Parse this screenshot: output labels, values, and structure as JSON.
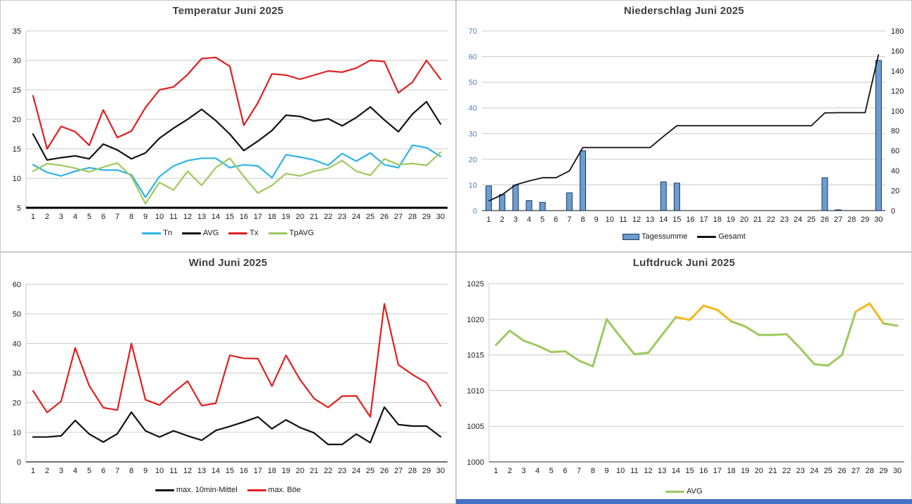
{
  "page": {
    "bottom_strip_color": "#4472C4",
    "gridline_color": "#c9c9c9",
    "tick_color": "#1a1a1a"
  },
  "chart_data": [
    {
      "id": "temperatur",
      "type": "line",
      "title": "Temperatur Juni 2025",
      "xlabel": "",
      "ylabel": "",
      "categories": [
        1,
        2,
        3,
        4,
        5,
        6,
        7,
        8,
        9,
        10,
        11,
        12,
        13,
        14,
        15,
        16,
        17,
        18,
        19,
        20,
        21,
        22,
        23,
        24,
        25,
        26,
        27,
        28,
        29,
        30
      ],
      "y_axis": {
        "min": 5,
        "max": 35,
        "step": 5
      },
      "x_axis_line": {
        "color": "#000000",
        "width": 3
      },
      "legend_position": "bottom",
      "series": [
        {
          "name": "Tn",
          "color": "#2eb3e8",
          "values": [
            12.3,
            11.0,
            10.4,
            11.2,
            11.8,
            11.4,
            11.4,
            10.6,
            6.8,
            10.3,
            12.1,
            13.0,
            13.4,
            13.4,
            11.8,
            12.3,
            12.1,
            10.1,
            14.0,
            13.6,
            13.1,
            12.2,
            14.2,
            12.9,
            14.3,
            12.3,
            11.8,
            15.6,
            15.2,
            13.7
          ]
        },
        {
          "name": "AVG",
          "color": "#121212",
          "values": [
            17.5,
            13.1,
            13.5,
            13.8,
            13.3,
            15.8,
            14.8,
            13.3,
            14.3,
            16.8,
            18.5,
            20.0,
            21.7,
            19.8,
            17.5,
            14.7,
            16.3,
            18.1,
            20.7,
            20.5,
            19.7,
            20.1,
            18.9,
            20.3,
            22.1,
            19.9,
            17.9,
            20.9,
            23.0,
            19.2
          ]
        },
        {
          "name": "Tx",
          "color": "#e0201f",
          "values": [
            24.0,
            15.0,
            18.8,
            17.9,
            15.6,
            21.6,
            16.9,
            18.0,
            22.0,
            25.0,
            25.5,
            27.6,
            30.3,
            30.5,
            29.0,
            19.0,
            22.8,
            27.7,
            27.5,
            26.8,
            27.5,
            28.2,
            28.0,
            28.7,
            30.0,
            29.8,
            24.5,
            26.3,
            30.0,
            26.8
          ]
        },
        {
          "name": "TpAVG",
          "color": "#9dc95e",
          "values": [
            11.2,
            12.5,
            12.2,
            11.7,
            11.1,
            11.9,
            12.6,
            10.3,
            5.7,
            9.3,
            8.0,
            11.2,
            8.8,
            11.8,
            13.4,
            10.3,
            7.5,
            8.8,
            10.8,
            10.4,
            11.2,
            11.7,
            13.0,
            11.2,
            10.5,
            13.3,
            12.3,
            12.5,
            12.2,
            14.4
          ]
        }
      ]
    },
    {
      "id": "niederschlag",
      "type": "bar",
      "title": "Niederschlag Juni 2025",
      "categories": [
        1,
        2,
        3,
        4,
        5,
        6,
        7,
        8,
        9,
        10,
        11,
        12,
        13,
        14,
        15,
        16,
        17,
        18,
        19,
        20,
        21,
        22,
        23,
        24,
        25,
        26,
        27,
        28,
        29,
        30
      ],
      "left_axis": {
        "min": 0,
        "max": 70,
        "step": 10,
        "label_color": "#4f81bd"
      },
      "right_axis": {
        "min": 0,
        "max": 180,
        "step": 20,
        "label_color": "#1a1a1a"
      },
      "legend_position": "bottom",
      "bar_series": {
        "name": "Tagessumme",
        "fill": "#6d9cd1",
        "stroke": "#17375e",
        "axis": "left",
        "values": [
          9.6,
          6.3,
          9.9,
          3.9,
          3.2,
          0,
          6.9,
          23.3,
          0,
          0,
          0,
          0,
          0,
          11.2,
          10.7,
          0,
          0,
          0,
          0,
          0,
          0,
          0,
          0,
          0,
          0,
          12.8,
          0.3,
          0,
          0,
          58.5
        ]
      },
      "line_series": {
        "name": "Gesamt",
        "color": "#121212",
        "axis": "right",
        "values": [
          9.6,
          15.9,
          25.8,
          29.7,
          32.9,
          32.9,
          39.8,
          63.1,
          63.1,
          63.1,
          63.1,
          63.1,
          63.1,
          74.3,
          85.0,
          85.0,
          85.0,
          85.0,
          85.0,
          85.0,
          85.0,
          85.0,
          85.0,
          85.0,
          85.0,
          97.8,
          98.1,
          98.1,
          98.1,
          156.6
        ]
      }
    },
    {
      "id": "wind",
      "type": "line",
      "title": "Wind Juni 2025",
      "categories": [
        1,
        2,
        3,
        4,
        5,
        6,
        7,
        8,
        9,
        10,
        11,
        12,
        13,
        14,
        15,
        16,
        17,
        18,
        19,
        20,
        21,
        22,
        23,
        24,
        25,
        26,
        27,
        28,
        29,
        30
      ],
      "y_axis": {
        "min": 0,
        "max": 60,
        "step": 10
      },
      "x_axis_line": {
        "color": "#404040",
        "width": 1.4
      },
      "legend_position": "bottom",
      "series": [
        {
          "name": "max. 10min-Mittel",
          "color": "#121212",
          "values": [
            8.4,
            8.4,
            8.8,
            14.0,
            9.4,
            6.7,
            9.5,
            16.8,
            10.5,
            8.4,
            10.5,
            8.8,
            7.3,
            10.6,
            12.0,
            13.5,
            15.2,
            11.2,
            14.2,
            11.6,
            9.8,
            5.9,
            5.9,
            9.4,
            6.5,
            18.5,
            12.6,
            12.1,
            12.1,
            8.5
          ]
        },
        {
          "name": "max. Böe",
          "color": "#e0201f",
          "values": [
            24.0,
            16.7,
            20.5,
            38.5,
            25.7,
            18.3,
            17.5,
            40.0,
            21.0,
            19.2,
            23.5,
            27.3,
            19.0,
            19.8,
            36.0,
            35.0,
            34.9,
            25.6,
            36.0,
            27.8,
            21.4,
            18.4,
            22.2,
            22.3,
            15.2,
            53.4,
            32.8,
            29.5,
            26.7,
            18.9
          ]
        }
      ]
    },
    {
      "id": "luftdruck",
      "type": "line",
      "title": "Luftdruck Juni 2025",
      "categories": [
        1,
        2,
        3,
        4,
        5,
        6,
        7,
        8,
        9,
        10,
        11,
        12,
        13,
        14,
        15,
        16,
        17,
        18,
        19,
        20,
        21,
        22,
        23,
        24,
        25,
        26,
        27,
        28,
        29,
        30
      ],
      "y_axis": {
        "min": 1000,
        "max": 1025,
        "step": 5
      },
      "x_axis_line": {
        "color": "#595959",
        "width": 1.2
      },
      "legend_position": "bottom",
      "series": [
        {
          "name": "AVG",
          "color": "#9dc95e",
          "highlight_color": "#f5b81c",
          "highlight_above": 1020,
          "width": 3,
          "values": [
            1016.4,
            1018.4,
            1017.0,
            1016.3,
            1015.4,
            1015.5,
            1014.2,
            1013.4,
            1020.0,
            1017.5,
            1015.1,
            1015.3,
            1017.8,
            1020.3,
            1019.9,
            1021.9,
            1021.3,
            1019.7,
            1019.0,
            1017.8,
            1017.8,
            1017.9,
            1015.9,
            1013.7,
            1013.5,
            1015.0,
            1021.1,
            1022.2,
            1019.4,
            1019.1
          ]
        }
      ]
    }
  ]
}
